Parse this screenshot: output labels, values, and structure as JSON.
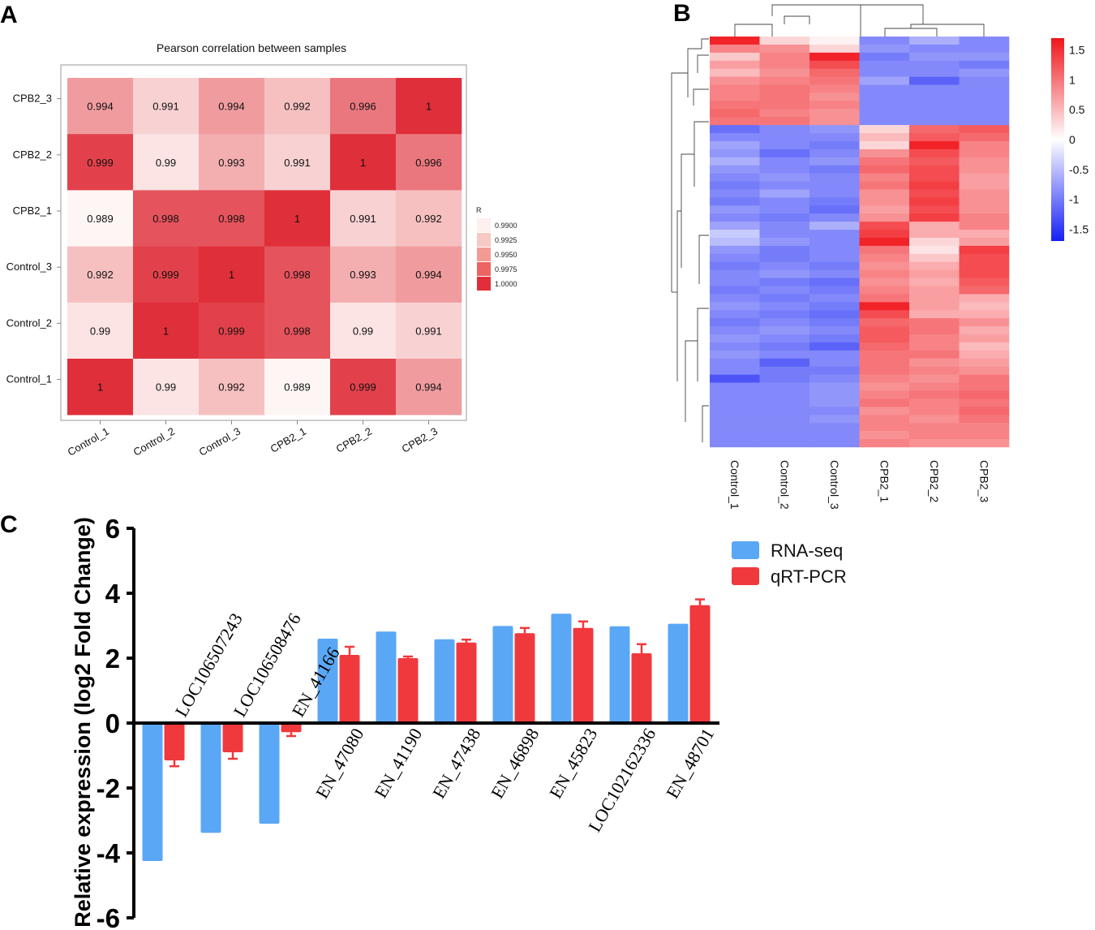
{
  "chart_data": [
    {
      "panel": "A",
      "type": "heatmap",
      "title": "Pearson correlation between samples",
      "x_labels": [
        "Control_1",
        "Control_2",
        "Control_3",
        "CPB2_1",
        "CPB2_2",
        "CPB2_3"
      ],
      "y_labels": [
        "CPB2_3",
        "CPB2_2",
        "CPB2_1",
        "Control_3",
        "Control_2",
        "Control_1"
      ],
      "values": [
        [
          0.994,
          0.991,
          0.994,
          0.992,
          0.996,
          1
        ],
        [
          0.999,
          0.99,
          0.993,
          0.991,
          1,
          0.996
        ],
        [
          0.989,
          0.998,
          0.998,
          1,
          0.991,
          0.992
        ],
        [
          0.992,
          0.999,
          1,
          0.998,
          0.993,
          0.994
        ],
        [
          0.99,
          1,
          0.999,
          0.998,
          0.99,
          0.991
        ],
        [
          1,
          0.99,
          0.992,
          0.989,
          0.999,
          0.994
        ]
      ],
      "cell_labels": [
        [
          "0.994",
          "0.991",
          "0.994",
          "0.992",
          "0.996",
          "1"
        ],
        [
          "0.999",
          "0.99",
          "0.993",
          "0.991",
          "1",
          "0.996"
        ],
        [
          "0.989",
          "0.998",
          "0.998",
          "1",
          "0.991",
          "0.992"
        ],
        [
          "0.992",
          "0.999",
          "1",
          "0.998",
          "0.993",
          "0.994"
        ],
        [
          "0.99",
          "1",
          "0.999",
          "0.998",
          "0.99",
          "0.991"
        ],
        [
          "1",
          "0.99",
          "0.992",
          "0.989",
          "0.999",
          "0.994"
        ]
      ],
      "legend": {
        "title": "R",
        "labels": [
          "0.9900",
          "0.9925",
          "0.9950",
          "0.9975",
          "1.0000"
        ],
        "colors": [
          "#fdf0ee",
          "#f7c9c3",
          "#f29a93",
          "#eb6562",
          "#e02f3a"
        ]
      },
      "color_range": [
        0.989,
        1.0
      ]
    },
    {
      "panel": "B",
      "type": "heatmap",
      "title": "",
      "x_labels": [
        "Control_1",
        "Control_2",
        "Control_3",
        "CPB2_1",
        "CPB2_2",
        "CPB2_3"
      ],
      "rows": 51,
      "values": [
        [
          1.6,
          0.3,
          0.1,
          -0.9,
          -0.6,
          -0.9
        ],
        [
          0.9,
          0.8,
          0.3,
          -0.8,
          -0.9,
          -0.9
        ],
        [
          0.4,
          0.9,
          1.6,
          -1.0,
          -0.8,
          -0.8
        ],
        [
          0.7,
          0.9,
          1.3,
          -0.9,
          -0.9,
          -1.0
        ],
        [
          0.5,
          0.8,
          1.1,
          -0.9,
          -0.9,
          -0.8
        ],
        [
          0.8,
          0.9,
          1.0,
          -0.7,
          -1.2,
          -0.9
        ],
        [
          0.9,
          1.0,
          0.9,
          -0.9,
          -0.9,
          -0.9
        ],
        [
          0.9,
          1.0,
          0.8,
          -0.9,
          -0.9,
          -0.9
        ],
        [
          1.0,
          1.0,
          0.9,
          -0.9,
          -0.9,
          -0.9
        ],
        [
          1.1,
          0.9,
          0.8,
          -0.9,
          -0.9,
          -0.9
        ],
        [
          1.0,
          1.0,
          0.8,
          -0.9,
          -0.9,
          -0.9
        ],
        [
          -1.1,
          -0.9,
          -0.8,
          0.3,
          1.1,
          1.2
        ],
        [
          -0.9,
          -0.9,
          -0.9,
          0.5,
          1.2,
          1.1
        ],
        [
          -0.7,
          -0.9,
          -1.0,
          0.3,
          1.6,
          0.9
        ],
        [
          -0.8,
          -1.1,
          -0.9,
          0.8,
          1.3,
          0.9
        ],
        [
          -0.6,
          -0.9,
          -0.8,
          1.0,
          1.2,
          0.8
        ],
        [
          -0.8,
          -0.9,
          -1.0,
          1.1,
          1.3,
          0.8
        ],
        [
          -0.9,
          -0.8,
          -0.9,
          0.9,
          1.3,
          0.7
        ],
        [
          -1.0,
          -0.9,
          -0.9,
          1.0,
          1.4,
          0.7
        ],
        [
          -0.9,
          -0.7,
          -0.9,
          0.8,
          1.3,
          0.8
        ],
        [
          -1.0,
          -0.9,
          -1.0,
          0.8,
          1.4,
          0.8
        ],
        [
          -0.8,
          -0.9,
          -1.1,
          0.7,
          1.3,
          0.8
        ],
        [
          -0.9,
          -1.0,
          -0.9,
          0.8,
          1.4,
          0.9
        ],
        [
          -0.7,
          -0.9,
          -0.6,
          1.3,
          0.6,
          0.9
        ],
        [
          -0.4,
          -0.9,
          -0.9,
          1.4,
          0.6,
          0.6
        ],
        [
          -0.5,
          -0.8,
          -0.9,
          1.6,
          0.3,
          0.7
        ],
        [
          -0.8,
          -1.0,
          -0.9,
          1.0,
          0.2,
          1.4
        ],
        [
          -0.9,
          -1.0,
          -0.9,
          0.9,
          0.4,
          1.3
        ],
        [
          -1.0,
          -0.9,
          -1.0,
          0.8,
          0.6,
          1.3
        ],
        [
          -0.9,
          -0.8,
          -0.9,
          0.9,
          0.7,
          1.3
        ],
        [
          -0.9,
          -1.0,
          -1.1,
          0.8,
          0.6,
          1.2
        ],
        [
          -1.0,
          -0.9,
          -1.0,
          0.9,
          0.7,
          1.1
        ],
        [
          -0.9,
          -1.0,
          -0.9,
          1.0,
          0.7,
          0.6
        ],
        [
          -0.8,
          -0.9,
          -1.0,
          1.6,
          0.7,
          0.5
        ],
        [
          -0.9,
          -1.0,
          -1.1,
          1.3,
          0.6,
          0.6
        ],
        [
          -1.0,
          -0.9,
          -1.0,
          1.1,
          1.0,
          0.8
        ],
        [
          -0.9,
          -0.8,
          -0.9,
          1.2,
          1.0,
          0.6
        ],
        [
          -0.8,
          -0.9,
          -1.0,
          1.2,
          0.9,
          0.7
        ],
        [
          -0.9,
          -1.0,
          -1.2,
          1.1,
          0.9,
          0.5
        ],
        [
          -0.8,
          -0.9,
          -0.9,
          1.0,
          1.0,
          0.6
        ],
        [
          -0.9,
          -1.2,
          -0.9,
          1.0,
          0.8,
          0.7
        ],
        [
          -0.9,
          -1.0,
          -1.0,
          1.0,
          0.9,
          0.8
        ],
        [
          -1.3,
          -1.0,
          -0.9,
          0.9,
          0.8,
          1.0
        ],
        [
          -0.9,
          -0.9,
          -0.8,
          0.8,
          0.9,
          1.0
        ],
        [
          -0.9,
          -0.9,
          -0.8,
          0.9,
          1.0,
          1.1
        ],
        [
          -0.9,
          -0.9,
          -0.8,
          1.0,
          0.9,
          1.0
        ],
        [
          -0.9,
          -0.9,
          -0.9,
          0.8,
          0.9,
          1.1
        ],
        [
          -0.9,
          -0.9,
          -0.8,
          0.9,
          0.8,
          1.0
        ],
        [
          -0.9,
          -0.9,
          -0.9,
          0.9,
          0.9,
          0.9
        ],
        [
          -0.9,
          -0.9,
          -0.9,
          0.8,
          0.9,
          0.9
        ],
        [
          -0.9,
          -0.9,
          -0.9,
          0.9,
          0.8,
          0.8
        ]
      ],
      "legend": {
        "labels": [
          "1.5",
          "1",
          "0.5",
          "0",
          "-0.5",
          "-1",
          "-1.5"
        ],
        "values": [
          1.5,
          1,
          0.5,
          0,
          -0.5,
          -1,
          -1.5
        ]
      },
      "color_range": [
        -1.7,
        1.7
      ],
      "dendrograms": [
        "rows",
        "columns"
      ]
    },
    {
      "panel": "C",
      "type": "bar",
      "categories": [
        "LOC106507243",
        "LOC106508476",
        "EN_41166",
        "EN_47080",
        "EN_41190",
        "EN_47438",
        "EN_46898",
        "EN_45823",
        "LOC102162336",
        "EN_48701"
      ],
      "series": [
        {
          "name": "RNA-seq",
          "color": "#5aa7f5",
          "values": [
            -4.25,
            -3.38,
            -3.1,
            2.6,
            2.82,
            2.58,
            2.99,
            3.37,
            2.98,
            3.06
          ],
          "errors": [
            0,
            0,
            0,
            0,
            0,
            0,
            0,
            0,
            0,
            0
          ]
        },
        {
          "name": "qRT-PCR",
          "color": "#f0393d",
          "values": [
            -1.15,
            -0.9,
            -0.28,
            2.1,
            2.0,
            2.48,
            2.77,
            2.93,
            2.15,
            3.63
          ],
          "errors": [
            0.18,
            0.2,
            0.12,
            0.25,
            0.05,
            0.09,
            0.16,
            0.2,
            0.28,
            0.18
          ]
        }
      ],
      "xlabel": "",
      "ylabel": "Relative expression (log2 Fold Change)",
      "ylim": [
        -6,
        6
      ],
      "yticks": [
        "6",
        "4",
        "2",
        "0",
        "-2",
        "-4",
        "-6"
      ],
      "ytick_values": [
        6,
        4,
        2,
        0,
        -2,
        -4,
        -6
      ],
      "legend_position": "top-right"
    }
  ],
  "panels": {
    "a": "A",
    "b": "B",
    "c": "C"
  }
}
